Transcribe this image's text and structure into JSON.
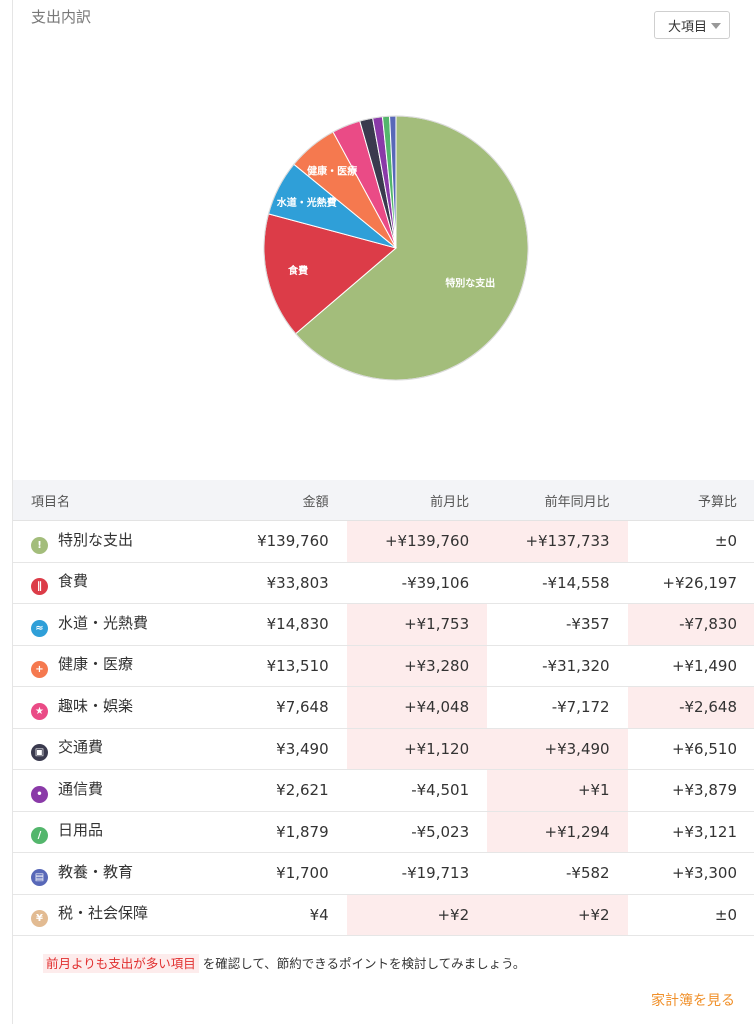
{
  "section_title": "支出内訳",
  "category_select": {
    "value": "大項目"
  },
  "chart_data": {
    "type": "pie",
    "title": "",
    "series_name": "",
    "categories": [
      "特別な支出",
      "食費",
      "水道・光熱費",
      "健康・医療",
      "趣味・娯楽",
      "交通費",
      "通信費",
      "日用品",
      "教養・教育",
      "税・社会保障"
    ],
    "values": [
      139760,
      33803,
      14830,
      13510,
      7648,
      3490,
      2621,
      1879,
      1700,
      4
    ],
    "colors": [
      "#a3bd7b",
      "#dc3c48",
      "#2f9fd8",
      "#f5794f",
      "#ea4b86",
      "#3a3a4e",
      "#8a3aa8",
      "#53b66c",
      "#5868b8",
      "#e2bb92"
    ],
    "labels_shown": [
      "特別な支出",
      "食費",
      "水道・光熱費",
      "健康・医療"
    ],
    "legend": "none"
  },
  "table": {
    "headers": {
      "name": "項目名",
      "amount": "金額",
      "prev_month": "前月比",
      "prev_year": "前年同月比",
      "budget": "予算比"
    },
    "rows": [
      {
        "name": "特別な支出",
        "icon": "exclamation-icon",
        "icon_color": "#a3bd7b",
        "amount": "¥139,760",
        "prev_month": "+¥139,760",
        "prev_year": "+¥137,733",
        "budget": "±0"
      },
      {
        "name": "食費",
        "icon": "fork-knife-icon",
        "icon_color": "#dc3c48",
        "amount": "¥33,803",
        "prev_month": "-¥39,106",
        "prev_year": "-¥14,558",
        "budget": "+¥26,197"
      },
      {
        "name": "水道・光熱費",
        "icon": "faucet-icon",
        "icon_color": "#2f9fd8",
        "amount": "¥14,830",
        "prev_month": "+¥1,753",
        "prev_year": "-¥357",
        "budget": "-¥7,830"
      },
      {
        "name": "健康・医療",
        "icon": "medical-cross-icon",
        "icon_color": "#f5794f",
        "amount": "¥13,510",
        "prev_month": "+¥3,280",
        "prev_year": "-¥31,320",
        "budget": "+¥1,490"
      },
      {
        "name": "趣味・娯楽",
        "icon": "star-icon",
        "icon_color": "#ea4b86",
        "amount": "¥7,648",
        "prev_month": "+¥4,048",
        "prev_year": "-¥7,172",
        "budget": "-¥2,648"
      },
      {
        "name": "交通費",
        "icon": "train-icon",
        "icon_color": "#3a3a4e",
        "amount": "¥3,490",
        "prev_month": "+¥1,120",
        "prev_year": "+¥3,490",
        "budget": "+¥6,510"
      },
      {
        "name": "通信費",
        "icon": "signal-icon",
        "icon_color": "#8a3aa8",
        "amount": "¥2,621",
        "prev_month": "-¥4,501",
        "prev_year": "+¥1",
        "budget": "+¥3,879"
      },
      {
        "name": "日用品",
        "icon": "bandage-icon",
        "icon_color": "#53b66c",
        "amount": "¥1,879",
        "prev_month": "-¥5,023",
        "prev_year": "+¥1,294",
        "budget": "+¥3,121"
      },
      {
        "name": "教養・教育",
        "icon": "book-icon",
        "icon_color": "#5868b8",
        "amount": "¥1,700",
        "prev_month": "-¥19,713",
        "prev_year": "-¥582",
        "budget": "+¥3,300"
      },
      {
        "name": "税・社会保障",
        "icon": "tax-icon",
        "icon_color": "#e2bb92",
        "amount": "¥4",
        "prev_month": "+¥2",
        "prev_year": "+¥2",
        "budget": "±0"
      }
    ]
  },
  "note": {
    "highlight": "前月よりも支出が多い項目",
    "text": " を確認して、節約できるポイントを検討してみましょう。"
  },
  "link_label": "家計簿を見る",
  "colors": {
    "over_text": "#e12f2f",
    "over_bg": "#fdecec",
    "link": "#f0902a",
    "header_bg": "#f3f4f7"
  }
}
